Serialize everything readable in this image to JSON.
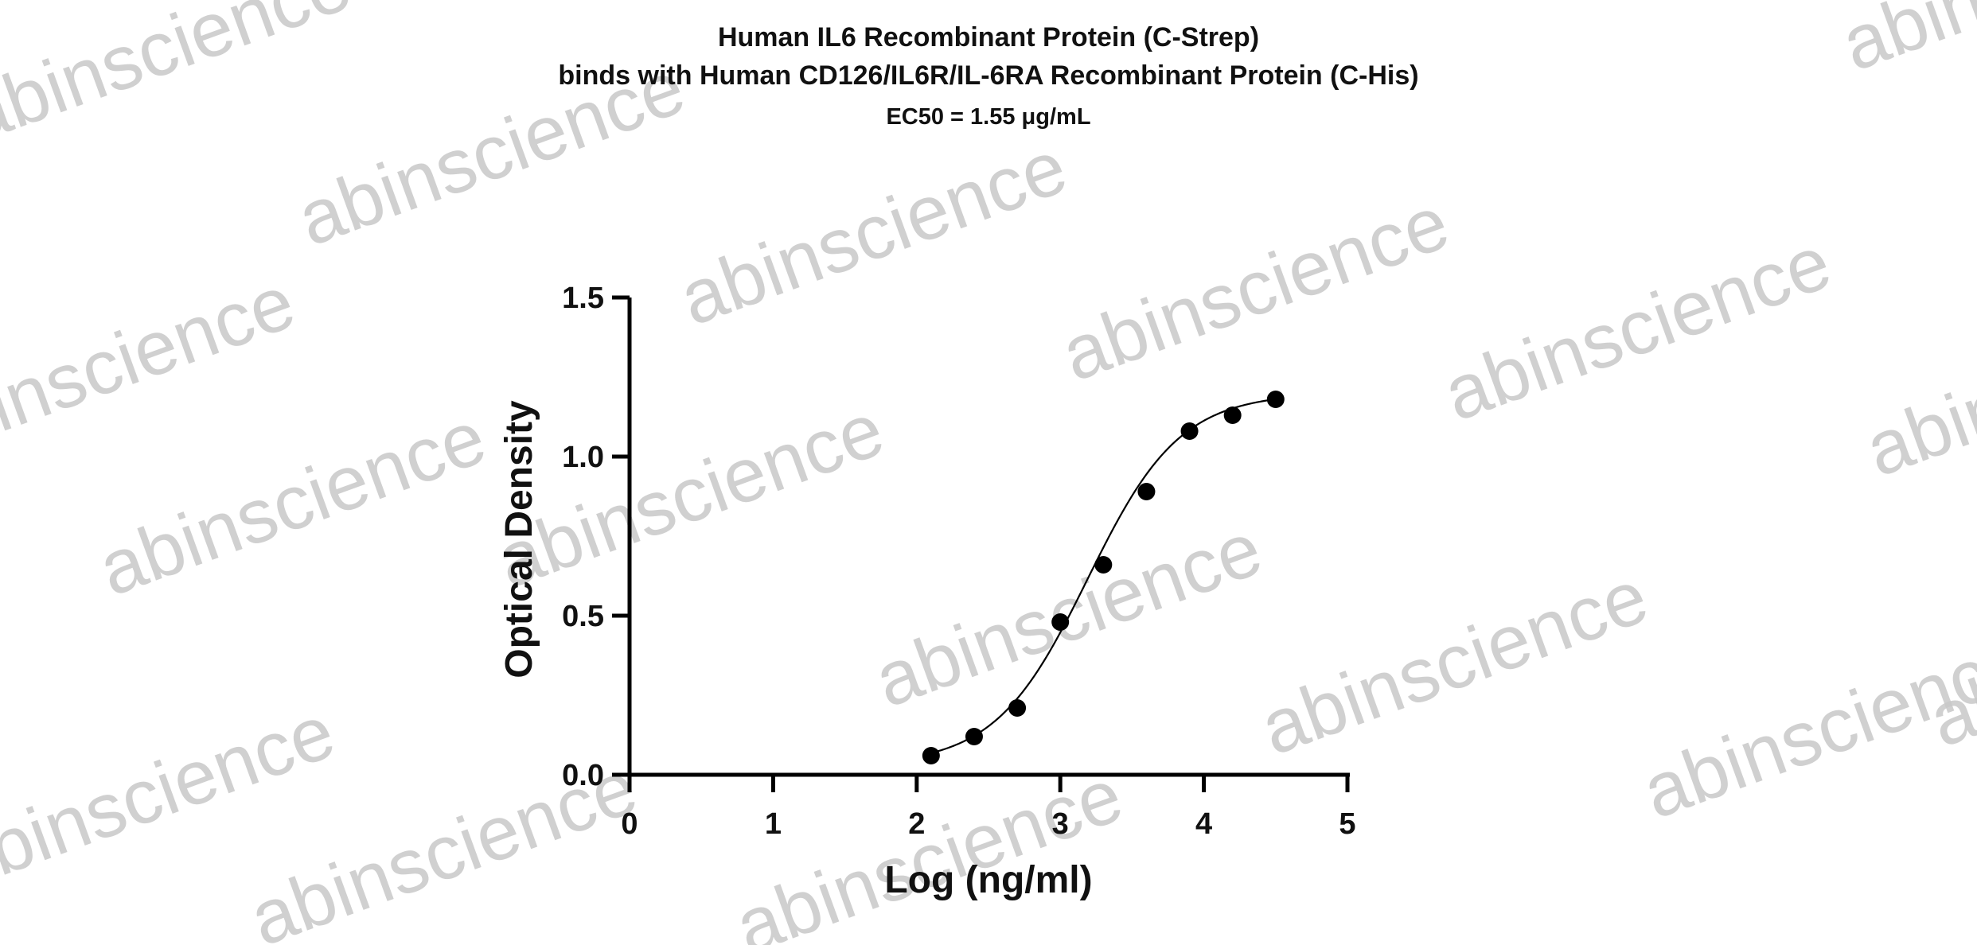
{
  "chart_data": {
    "type": "scatter",
    "title_lines": [
      "Human IL6 Recombinant Protein (C-Strep)",
      "binds with Human CD126/IL6R/IL-6RA Recombinant Protein (C-His)"
    ],
    "subtitle": "EC50 = 1.55 μg/mL",
    "xlabel": "Log (ng/ml)",
    "ylabel": "Optical Density",
    "xlim": [
      0,
      5
    ],
    "ylim": [
      0,
      1.5
    ],
    "x_ticks": [
      0,
      1,
      2,
      3,
      4,
      5
    ],
    "x_tick_labels": [
      "0",
      "1",
      "2",
      "3",
      "4",
      "5"
    ],
    "y_ticks": [
      0,
      0.5,
      1.0,
      1.5
    ],
    "y_tick_labels": [
      "0.0",
      "0.5",
      "1.0",
      "1.5"
    ],
    "grid": false,
    "series": [
      {
        "points": [
          {
            "x": 2.1,
            "y": 0.06
          },
          {
            "x": 2.4,
            "y": 0.12
          },
          {
            "x": 2.7,
            "y": 0.21
          },
          {
            "x": 3.0,
            "y": 0.48
          },
          {
            "x": 3.3,
            "y": 0.66
          },
          {
            "x": 3.6,
            "y": 0.89
          },
          {
            "x": 3.9,
            "y": 1.08
          },
          {
            "x": 4.2,
            "y": 1.13
          },
          {
            "x": 4.5,
            "y": 1.18
          }
        ],
        "fit": {
          "model": "4PL",
          "bottom": 0.03,
          "top": 1.2,
          "log_ec50": 3.19,
          "hill_slope": 1.35,
          "x_range": [
            2.1,
            4.5
          ]
        }
      }
    ],
    "colors": {
      "points": "#000000",
      "axes": "#000000",
      "watermark": "#c8c8c8"
    }
  },
  "watermark": {
    "text": "abinscience"
  }
}
